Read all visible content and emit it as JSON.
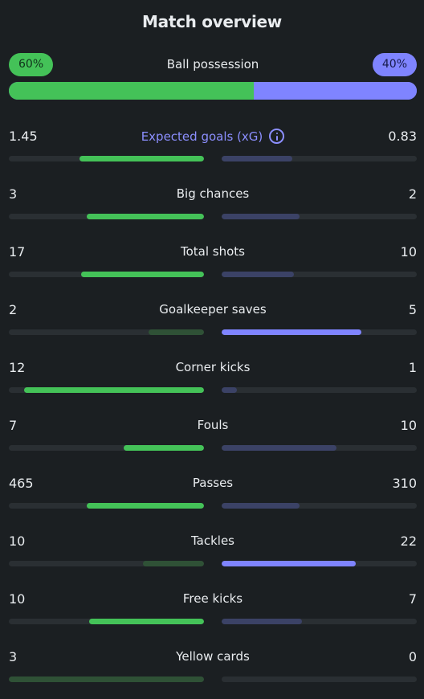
{
  "title": "Match overview",
  "possession": {
    "label": "Ball possession",
    "home": "60%",
    "away": "40%",
    "home_fraction": 0.6,
    "away_fraction": 0.4
  },
  "stats": [
    {
      "label": "Expected goals (xG)",
      "home": "1.45",
      "away": "0.83",
      "home_fraction": 0.636,
      "away_fraction": 0.364,
      "leader": "home",
      "accent_label": true,
      "icon": "info-icon"
    },
    {
      "label": "Big chances",
      "home": "3",
      "away": "2",
      "home_fraction": 0.6,
      "away_fraction": 0.4,
      "leader": "home"
    },
    {
      "label": "Total shots",
      "home": "17",
      "away": "10",
      "home_fraction": 0.63,
      "away_fraction": 0.37,
      "leader": "home"
    },
    {
      "label": "Goalkeeper saves",
      "home": "2",
      "away": "5",
      "home_fraction": 0.286,
      "away_fraction": 0.714,
      "leader": "away"
    },
    {
      "label": "Corner kicks",
      "home": "12",
      "away": "1",
      "home_fraction": 0.923,
      "away_fraction": 0.077,
      "leader": "home"
    },
    {
      "label": "Fouls",
      "home": "7",
      "away": "10",
      "home_fraction": 0.412,
      "away_fraction": 0.588,
      "leader": "home"
    },
    {
      "label": "Passes",
      "home": "465",
      "away": "310",
      "home_fraction": 0.6,
      "away_fraction": 0.4,
      "leader": "home"
    },
    {
      "label": "Tackles",
      "home": "10",
      "away": "22",
      "home_fraction": 0.3125,
      "away_fraction": 0.6875,
      "leader": "away"
    },
    {
      "label": "Free kicks",
      "home": "10",
      "away": "7",
      "home_fraction": 0.588,
      "away_fraction": 0.412,
      "leader": "home"
    },
    {
      "label": "Yellow cards",
      "home": "3",
      "away": "0",
      "home_fraction": 1.0,
      "away_fraction": 0.0,
      "leader": "away"
    }
  ],
  "colors": {
    "background": "#1b1f22",
    "home_strong": "#44c258",
    "home_weak": "#2f5136",
    "away_strong": "#7f84ff",
    "away_weak": "#3b4266",
    "track": "#2a2f33",
    "accent_text": "#8c8fff"
  }
}
